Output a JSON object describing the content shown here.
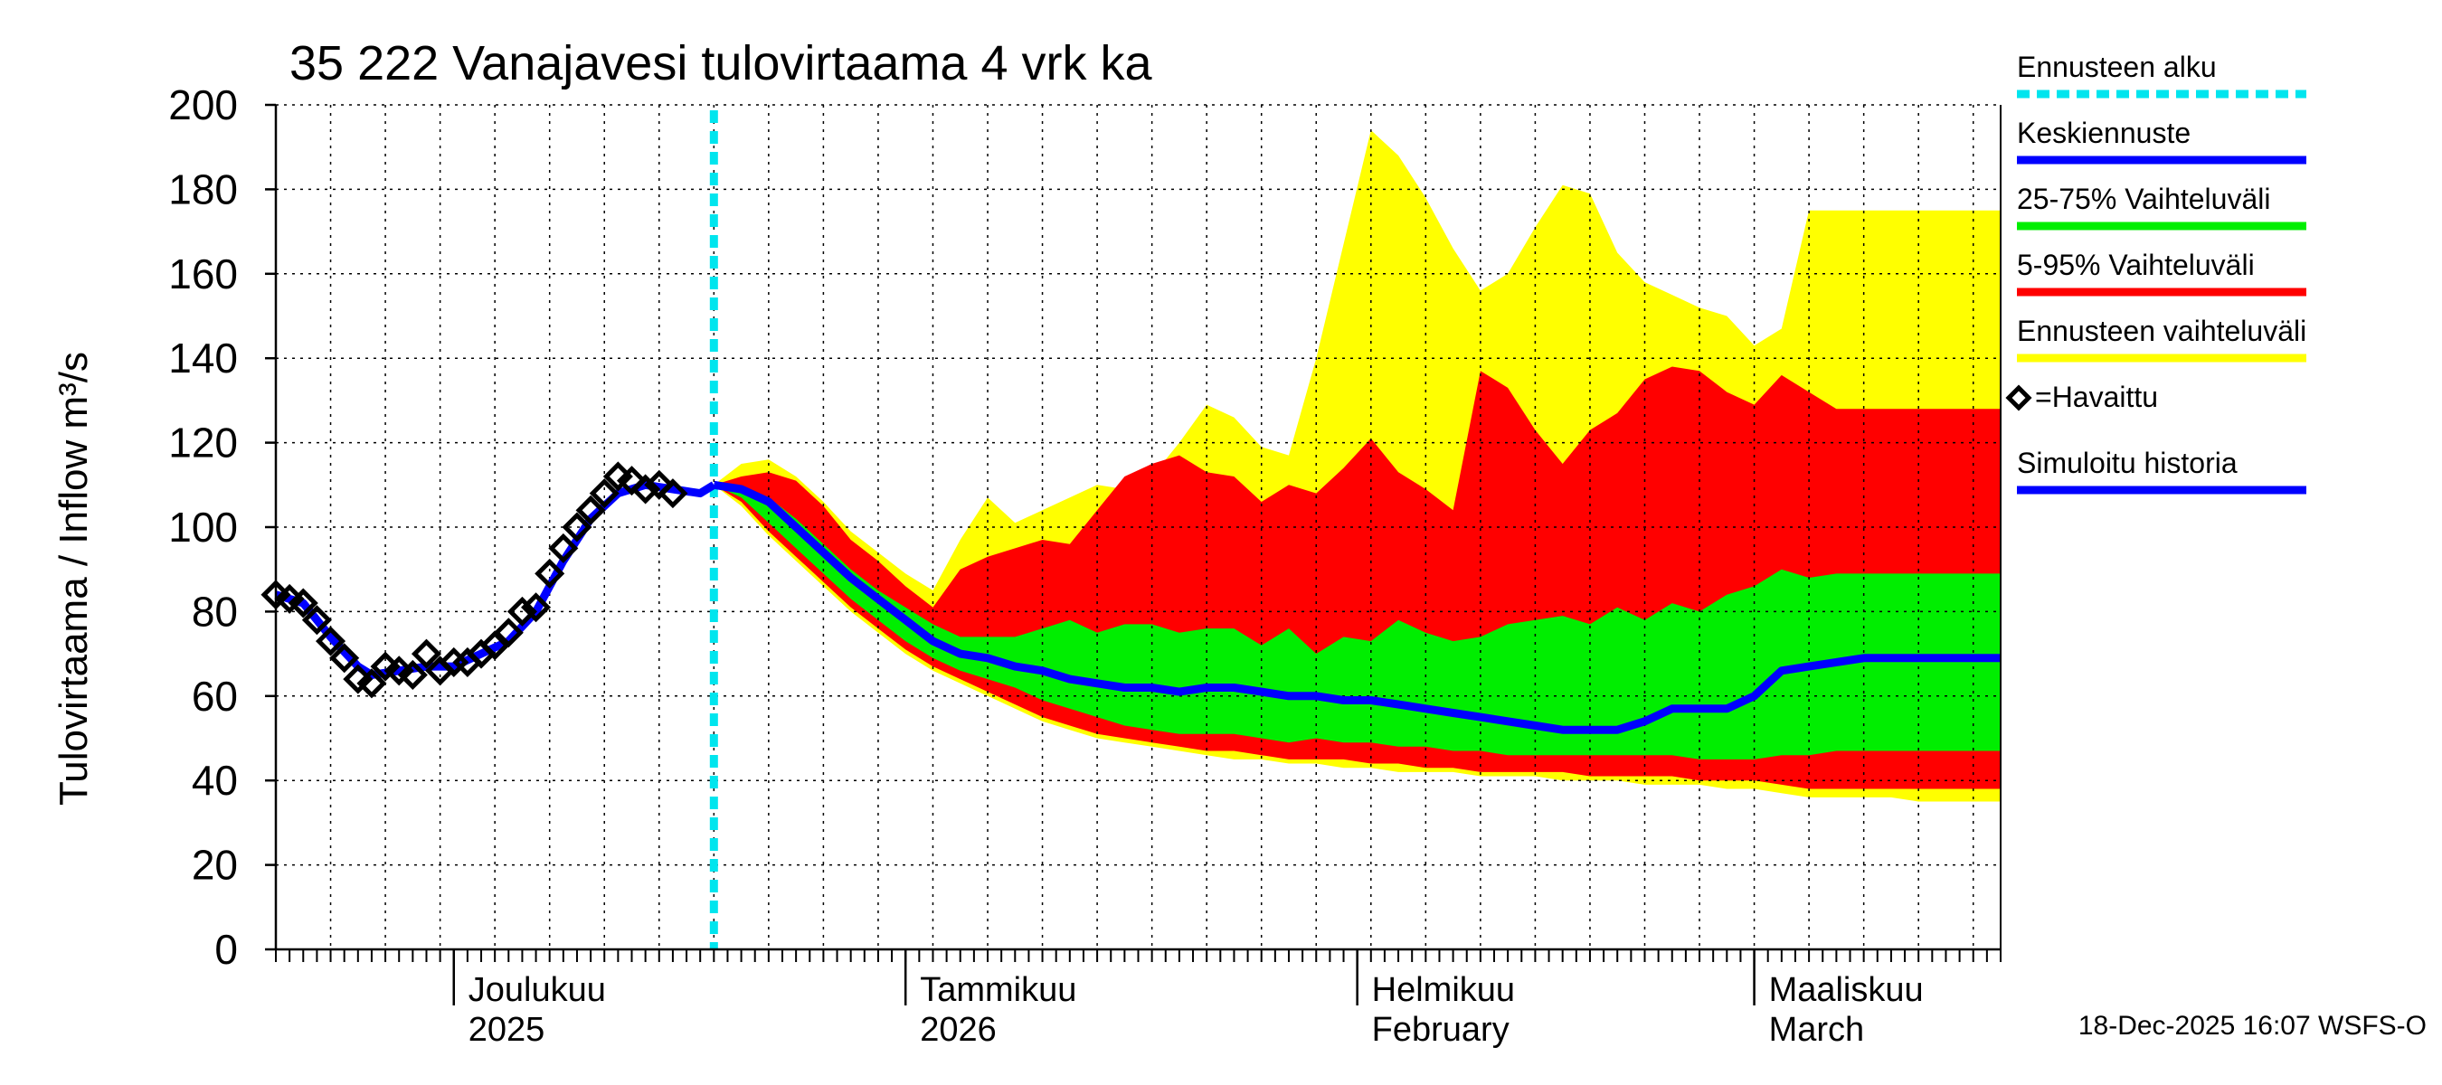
{
  "chart_data": {
    "type": "area",
    "title": "35 222 Vanajavesi tulovirtaama 4 vrk ka",
    "ylabel": "Tulovirtaama / Inflow   m³/s",
    "xlabel": "",
    "ylim": [
      0,
      200
    ],
    "xlim_days": [
      0,
      126
    ],
    "y_ticks": [
      "0",
      "20",
      "40",
      "60",
      "80",
      "100",
      "120",
      "140",
      "160",
      "180",
      "200"
    ],
    "forecast_start_day": 32,
    "month_labels": [
      {
        "day": 13,
        "line1": "Joulukuu",
        "line2": "2025"
      },
      {
        "day": 46,
        "line1": "Tammikuu",
        "line2": "2026"
      },
      {
        "day": 79,
        "line1": "Helmikuu",
        "line2": "February"
      },
      {
        "day": 108,
        "line1": "Maaliskuu",
        "line2": "March"
      }
    ],
    "major_tick_days": [
      13,
      46,
      79,
      108
    ],
    "legend": [
      {
        "label": "Ennusteen alku",
        "color": "#00e5ee",
        "style": "dotted"
      },
      {
        "label": "Keskiennuste",
        "color": "#0000ff",
        "style": "line"
      },
      {
        "label": "25-75% Vaihteluväli",
        "color": "#00ee00",
        "style": "line"
      },
      {
        "label": "5-95% Vaihteluväli",
        "color": "#ff0000",
        "style": "line"
      },
      {
        "label": "Ennusteen vaihteluväli",
        "color": "#ffff00",
        "style": "line"
      },
      {
        "label": "=Havaittu",
        "color": "#000000",
        "style": "diamond"
      },
      {
        "label": "Simuloitu historia",
        "color": "#0000ff",
        "style": "line"
      }
    ],
    "footer": "18-Dec-2025 16:07 WSFS-O",
    "observed": {
      "x": [
        0,
        1,
        2,
        3,
        4,
        5,
        6,
        7,
        8,
        9,
        10,
        11,
        12,
        13,
        14,
        15,
        16,
        17,
        18,
        19,
        20,
        21,
        22,
        23,
        24,
        25,
        26,
        27,
        28,
        29,
        30,
        31
      ],
      "y": [
        84,
        83,
        82,
        78,
        73,
        69,
        64,
        63,
        67,
        66,
        65,
        70,
        66,
        68,
        68,
        70,
        72,
        75,
        80,
        81,
        89,
        95,
        100,
        104,
        108,
        112,
        111,
        109,
        110,
        108,
        null,
        null
      ]
    },
    "simulated_history": {
      "x": [
        0,
        2,
        4,
        6,
        7,
        9,
        11,
        13,
        15,
        17,
        19,
        21,
        23,
        25,
        27,
        29,
        31,
        32
      ],
      "y": [
        84,
        82,
        74,
        67,
        65,
        66,
        67,
        67,
        70,
        73,
        80,
        92,
        102,
        108,
        110,
        109,
        108,
        110
      ]
    },
    "forecast_x": [
      32,
      34,
      36,
      38,
      40,
      42,
      44,
      46,
      48,
      50,
      52,
      54,
      56,
      58,
      60,
      62,
      64,
      66,
      68,
      70,
      72,
      74,
      76,
      78,
      80,
      82,
      84,
      86,
      88,
      90,
      92,
      94,
      96,
      98,
      100,
      102,
      104,
      106,
      108,
      110,
      112,
      114,
      116,
      118,
      120,
      122,
      124,
      126
    ],
    "series": [
      {
        "name": "Ennusteen vaihteluväli max",
        "values": [
          110,
          115,
          116,
          112,
          106,
          99,
          94,
          89,
          85,
          97,
          107,
          101,
          104,
          107,
          110,
          109,
          112,
          120,
          129,
          126,
          119,
          117,
          140,
          167,
          194,
          188,
          178,
          166,
          156,
          160,
          171,
          181,
          179,
          165,
          158,
          155,
          152,
          150,
          143,
          147,
          175,
          175,
          175,
          175,
          175,
          175,
          175,
          175
        ]
      },
      {
        "name": "5-95% upper",
        "values": [
          110,
          112,
          113,
          111,
          105,
          97,
          92,
          86,
          81,
          90,
          93,
          95,
          97,
          96,
          104,
          112,
          115,
          117,
          113,
          112,
          106,
          110,
          108,
          114,
          121,
          113,
          109,
          104,
          137,
          133,
          123,
          115,
          123,
          127,
          135,
          138,
          137,
          132,
          129,
          136,
          132,
          128,
          128,
          128,
          128,
          128,
          128,
          128
        ]
      },
      {
        "name": "25-75% upper",
        "values": [
          110,
          109,
          107,
          102,
          96,
          90,
          85,
          81,
          77,
          74,
          74,
          74,
          76,
          78,
          75,
          77,
          77,
          75,
          76,
          76,
          72,
          76,
          70,
          74,
          73,
          78,
          75,
          73,
          74,
          77,
          78,
          79,
          77,
          81,
          78,
          82,
          80,
          84,
          86,
          90,
          88,
          89,
          89,
          89,
          89,
          89,
          89,
          89
        ]
      },
      {
        "name": "Keskiennuste",
        "values": [
          110,
          109,
          106,
          100,
          94,
          88,
          83,
          78,
          73,
          70,
          69,
          67,
          66,
          64,
          63,
          62,
          62,
          61,
          62,
          62,
          61,
          60,
          60,
          59,
          59,
          58,
          57,
          56,
          55,
          54,
          53,
          52,
          52,
          52,
          54,
          57,
          57,
          57,
          60,
          66,
          67,
          68,
          69,
          69,
          69,
          69,
          69,
          69
        ]
      },
      {
        "name": "25-75% lower",
        "values": [
          110,
          107,
          101,
          95,
          89,
          83,
          78,
          73,
          69,
          66,
          64,
          62,
          59,
          57,
          55,
          53,
          52,
          51,
          51,
          51,
          50,
          49,
          50,
          49,
          49,
          48,
          48,
          47,
          47,
          46,
          46,
          46,
          46,
          46,
          46,
          46,
          45,
          45,
          45,
          46,
          46,
          47,
          47,
          47,
          47,
          47,
          47,
          47
        ]
      },
      {
        "name": "5-95% lower",
        "values": [
          110,
          106,
          99,
          93,
          87,
          81,
          76,
          71,
          67,
          64,
          61,
          58,
          55,
          53,
          51,
          50,
          49,
          48,
          47,
          47,
          46,
          45,
          45,
          45,
          44,
          44,
          43,
          43,
          42,
          42,
          42,
          42,
          41,
          41,
          41,
          41,
          40,
          40,
          40,
          39,
          38,
          38,
          38,
          38,
          38,
          38,
          38,
          38
        ]
      },
      {
        "name": "Ennusteen vaihteluväli min",
        "values": [
          110,
          105,
          98,
          92,
          86,
          80,
          75,
          70,
          66,
          63,
          60,
          57,
          54,
          52,
          50,
          49,
          48,
          47,
          46,
          45,
          45,
          44,
          44,
          43,
          43,
          42,
          42,
          42,
          41,
          41,
          41,
          40,
          40,
          40,
          39,
          39,
          39,
          38,
          38,
          37,
          36,
          36,
          36,
          36,
          35,
          35,
          35,
          35
        ]
      }
    ],
    "colors": {
      "yellow": "#ffff00",
      "red": "#ff0000",
      "green": "#00ee00",
      "blue": "#0000ff",
      "cyan": "#00e5ee",
      "grid": "#000000"
    }
  }
}
